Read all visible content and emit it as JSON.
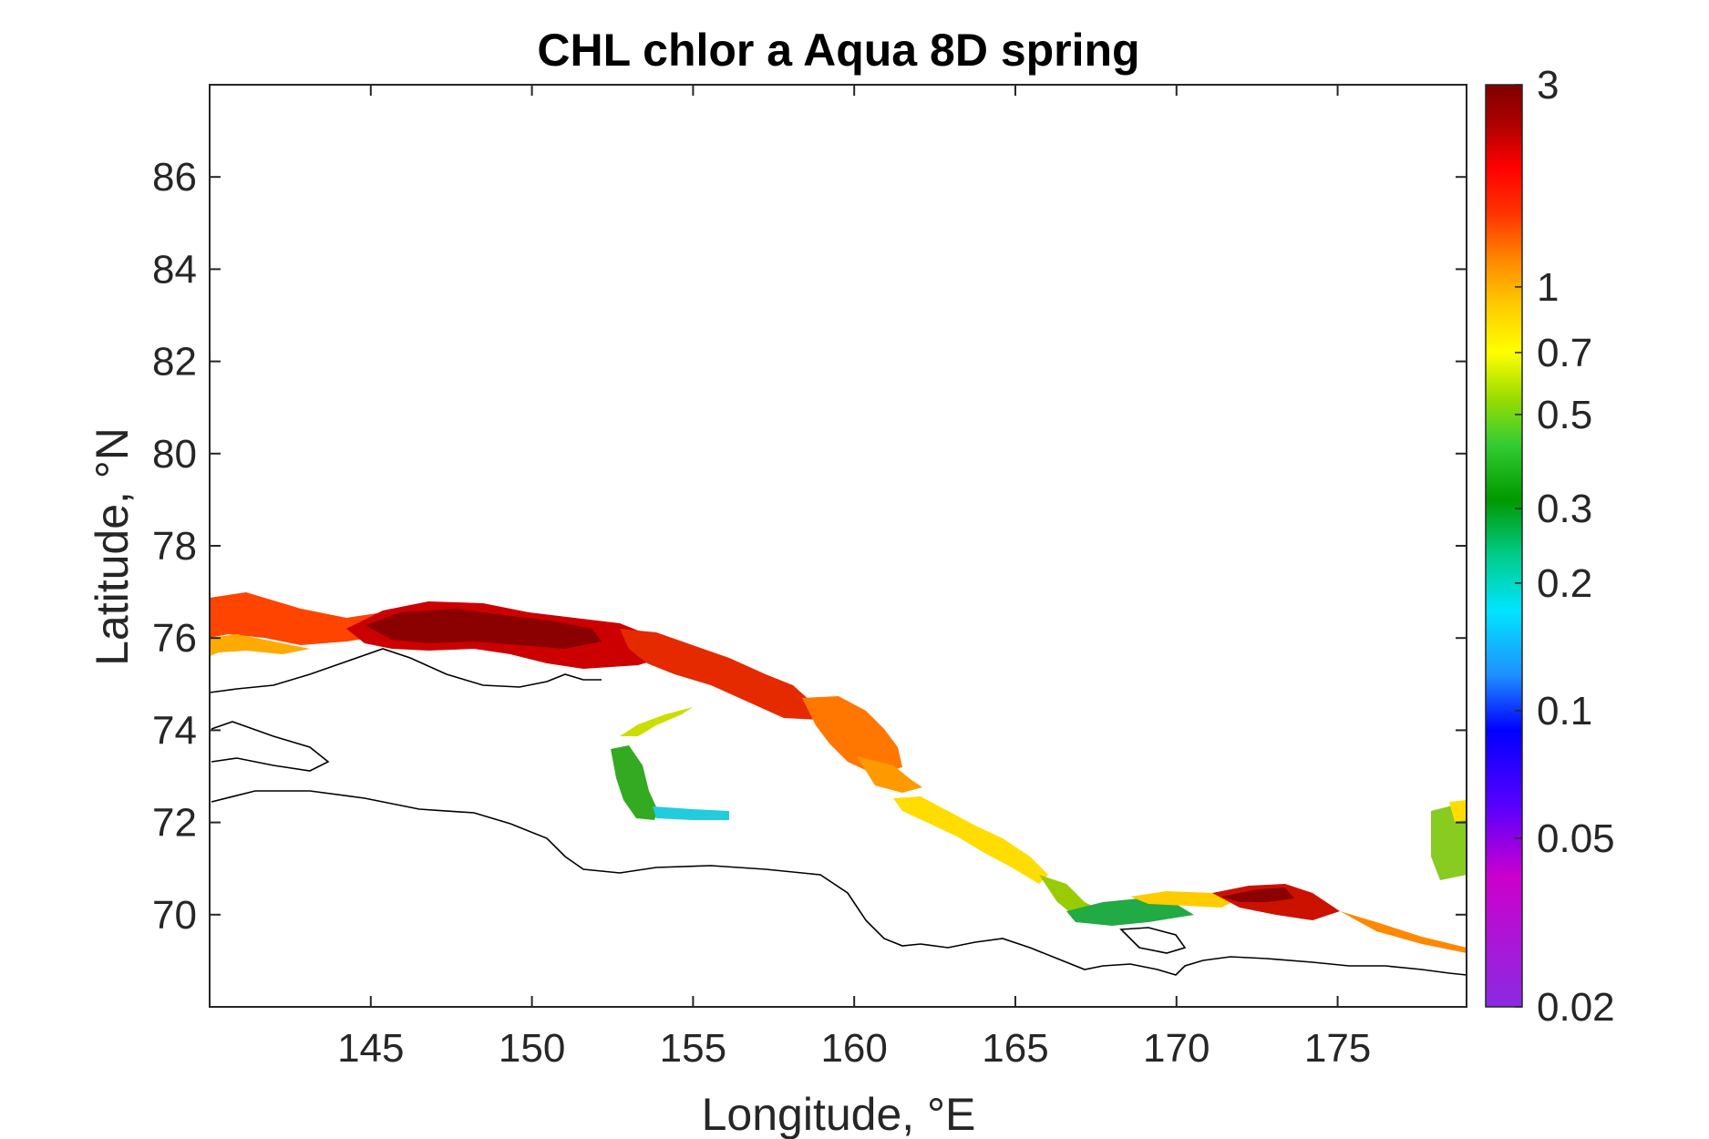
{
  "title": "CHL chlor a Aqua 8D spring",
  "chart_data": {
    "type": "heatmap",
    "title": "CHL chlor a Aqua 8D spring",
    "xlabel": "Longitude, °E",
    "ylabel": "Latitude, °N",
    "xlim": [
      140,
      179
    ],
    "ylim": [
      68,
      88
    ],
    "xticks": [
      145,
      150,
      155,
      160,
      165,
      170,
      175
    ],
    "yticks": [
      70,
      72,
      74,
      76,
      78,
      80,
      82,
      84,
      86
    ],
    "colorbar": {
      "scale": "log",
      "range": [
        0.02,
        3
      ],
      "ticks": [
        "3",
        "1",
        "0.7",
        "0.5",
        "0.3",
        "0.2",
        "0.1",
        "0.05",
        "0.02"
      ],
      "colors": [
        "#8a2be2",
        "#cc00cc",
        "#6a00ff",
        "#0000ff",
        "#1e90ff",
        "#00e5ff",
        "#00cc88",
        "#009900",
        "#33cc33",
        "#88dd00",
        "#ffff00",
        "#ffcc00",
        "#ff8800",
        "#ff3300",
        "#ff0000",
        "#aa0000",
        "#800000"
      ]
    },
    "coastline_color": "#000000",
    "grid": false
  },
  "axes": {
    "x_ticks": [
      "145",
      "150",
      "155",
      "160",
      "165",
      "170",
      "175"
    ],
    "y_ticks": [
      "70",
      "72",
      "74",
      "76",
      "78",
      "80",
      "82",
      "84",
      "86"
    ]
  }
}
